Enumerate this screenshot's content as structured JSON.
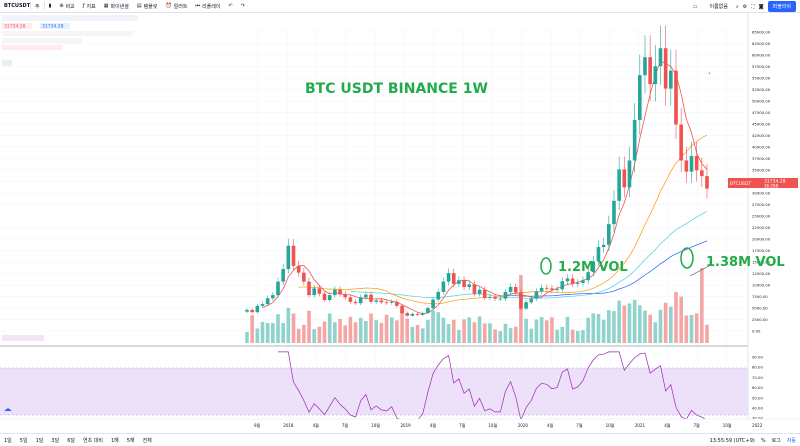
{
  "toolbar": {
    "symbol": "BTCUSDT",
    "interval": "주",
    "compare": "비교",
    "indicators": "지표",
    "financials": "파이낸셜",
    "templates": "템플릿",
    "alert": "얼러트",
    "replay": "리플레이",
    "unnamed": "이름없음",
    "publish": "퍼블리쉬"
  },
  "legend": {
    "price_tag_left": "31734.28",
    "price_tag_right": "31734.28"
  },
  "annotations": {
    "title": "BTC USDT BINANCE 1W",
    "vol1": "1.2M VOL",
    "vol2": "1.38M VOL"
  },
  "colors": {
    "up": "#26a69a",
    "down": "#ef5350",
    "annotation": "#22ab4a",
    "rsi_line": "#9c27b0",
    "rsi_band": "#ede1fa",
    "ma_red": "#ef5350",
    "ma_orange": "#ff9800",
    "ma_cyan": "#4dd0e1",
    "ma_blue": "#2962ff"
  },
  "price_axis": {
    "ticks": [
      "65000.00",
      "62500.00",
      "60000.00",
      "57500.00",
      "55000.00",
      "52500.00",
      "50000.00",
      "47500.00",
      "45000.00",
      "42500.00",
      "40000.00",
      "37500.00",
      "35000.00",
      "32500.00",
      "30000.00",
      "27500.00",
      "25000.00",
      "22500.00",
      "20000.00",
      "17500.00",
      "15000.00",
      "12500.00",
      "10000.00",
      "7500.00",
      "5000.00",
      "2500.00",
      "0.00"
    ],
    "last_symbol": "BTCUSDT",
    "last_price": "31734.28",
    "last_sub": "36.208"
  },
  "rsi_axis": {
    "ticks": [
      "90.00",
      "80.00",
      "70.00",
      "60.00",
      "50.00",
      "40.00",
      "30.00"
    ]
  },
  "time_axis": {
    "labels": [
      "9월",
      "2018",
      "4월",
      "7월",
      "10월",
      "2019",
      "4월",
      "7월",
      "10월",
      "2020",
      "4월",
      "7월",
      "10월",
      "2021",
      "4월",
      "7월",
      "10월",
      "2022"
    ]
  },
  "bottombar": {
    "ranges": [
      "1일",
      "5일",
      "1달",
      "3달",
      "6달",
      "연초 대비",
      "1해",
      "5해",
      "전체"
    ],
    "time": "13:55:59 (UTC+9)",
    "pct": "%",
    "log": "로그",
    "auto": "자동"
  },
  "chart_data": {
    "type": "candlestick",
    "title": "BTC USDT BINANCE 1W",
    "ylim": [
      0,
      67500
    ],
    "candles": [
      {
        "o": 4300,
        "c": 4700
      },
      {
        "o": 4700,
        "c": 4200
      },
      {
        "o": 4200,
        "c": 5600
      },
      {
        "o": 5600,
        "c": 6000
      },
      {
        "o": 6000,
        "c": 7300
      },
      {
        "o": 7300,
        "c": 8000
      },
      {
        "o": 8000,
        "c": 11000
      },
      {
        "o": 11000,
        "c": 13800
      },
      {
        "o": 13800,
        "c": 19000
      },
      {
        "o": 19000,
        "c": 14500
      },
      {
        "o": 14500,
        "c": 13000
      },
      {
        "o": 13000,
        "c": 11000
      },
      {
        "o": 11000,
        "c": 8000
      },
      {
        "o": 8000,
        "c": 9500
      },
      {
        "o": 9500,
        "c": 8300
      },
      {
        "o": 8300,
        "c": 6900
      },
      {
        "o": 6900,
        "c": 8000
      },
      {
        "o": 8000,
        "c": 9200
      },
      {
        "o": 9200,
        "c": 8200
      },
      {
        "o": 8200,
        "c": 7500
      },
      {
        "o": 7500,
        "c": 6500
      },
      {
        "o": 6500,
        "c": 6200
      },
      {
        "o": 6200,
        "c": 7500
      },
      {
        "o": 7500,
        "c": 8100
      },
      {
        "o": 8100,
        "c": 6500
      },
      {
        "o": 6500,
        "c": 6800
      },
      {
        "o": 6800,
        "c": 6400
      },
      {
        "o": 6400,
        "c": 6300
      },
      {
        "o": 6300,
        "c": 6500
      },
      {
        "o": 6500,
        "c": 5600
      },
      {
        "o": 5600,
        "c": 4000
      },
      {
        "o": 4000,
        "c": 3400
      },
      {
        "o": 3400,
        "c": 3800
      },
      {
        "o": 3800,
        "c": 3600
      },
      {
        "o": 3600,
        "c": 4000
      },
      {
        "o": 4000,
        "c": 5100
      },
      {
        "o": 5100,
        "c": 7000
      },
      {
        "o": 7000,
        "c": 8700
      },
      {
        "o": 8700,
        "c": 11000
      },
      {
        "o": 11000,
        "c": 12900
      },
      {
        "o": 12900,
        "c": 10500
      },
      {
        "o": 10500,
        "c": 11300
      },
      {
        "o": 11300,
        "c": 9800
      },
      {
        "o": 9800,
        "c": 10400
      },
      {
        "o": 10400,
        "c": 8300
      },
      {
        "o": 8300,
        "c": 9200
      },
      {
        "o": 9200,
        "c": 7400
      },
      {
        "o": 7400,
        "c": 7600
      },
      {
        "o": 7600,
        "c": 7200
      },
      {
        "o": 7200,
        "c": 7200
      },
      {
        "o": 7200,
        "c": 8700
      },
      {
        "o": 8700,
        "c": 9800
      },
      {
        "o": 9800,
        "c": 8600
      },
      {
        "o": 8600,
        "c": 5000
      },
      {
        "o": 5000,
        "c": 6400
      },
      {
        "o": 6400,
        "c": 7200
      },
      {
        "o": 7200,
        "c": 8800
      },
      {
        "o": 8800,
        "c": 9600
      },
      {
        "o": 9600,
        "c": 9500
      },
      {
        "o": 9500,
        "c": 9200
      },
      {
        "o": 9200,
        "c": 9300
      },
      {
        "o": 9300,
        "c": 11100
      },
      {
        "o": 11100,
        "c": 11700
      },
      {
        "o": 11700,
        "c": 10500
      },
      {
        "o": 10500,
        "c": 10700
      },
      {
        "o": 10700,
        "c": 11300
      },
      {
        "o": 11300,
        "c": 13100
      },
      {
        "o": 13100,
        "c": 15500
      },
      {
        "o": 15500,
        "c": 18700
      },
      {
        "o": 18700,
        "c": 19200
      },
      {
        "o": 19200,
        "c": 23800
      },
      {
        "o": 23800,
        "c": 29000
      },
      {
        "o": 29000,
        "c": 36000
      },
      {
        "o": 36000,
        "c": 32000
      },
      {
        "o": 32000,
        "c": 38000
      },
      {
        "o": 38000,
        "c": 47000
      },
      {
        "o": 47000,
        "c": 57000
      },
      {
        "o": 57000,
        "c": 61000
      },
      {
        "o": 61000,
        "c": 55000
      },
      {
        "o": 55000,
        "c": 59000
      },
      {
        "o": 59000,
        "c": 63000
      },
      {
        "o": 63000,
        "c": 54000
      },
      {
        "o": 54000,
        "c": 58000
      },
      {
        "o": 58000,
        "c": 46000
      },
      {
        "o": 46000,
        "c": 38000
      },
      {
        "o": 38000,
        "c": 35500
      },
      {
        "o": 35500,
        "c": 39000
      },
      {
        "o": 39000,
        "c": 35800
      },
      {
        "o": 35800,
        "c": 34500
      },
      {
        "o": 34500,
        "c": 31734
      }
    ],
    "volume_peaks": [
      "1.2M VOL",
      "1.38M VOL"
    ]
  }
}
